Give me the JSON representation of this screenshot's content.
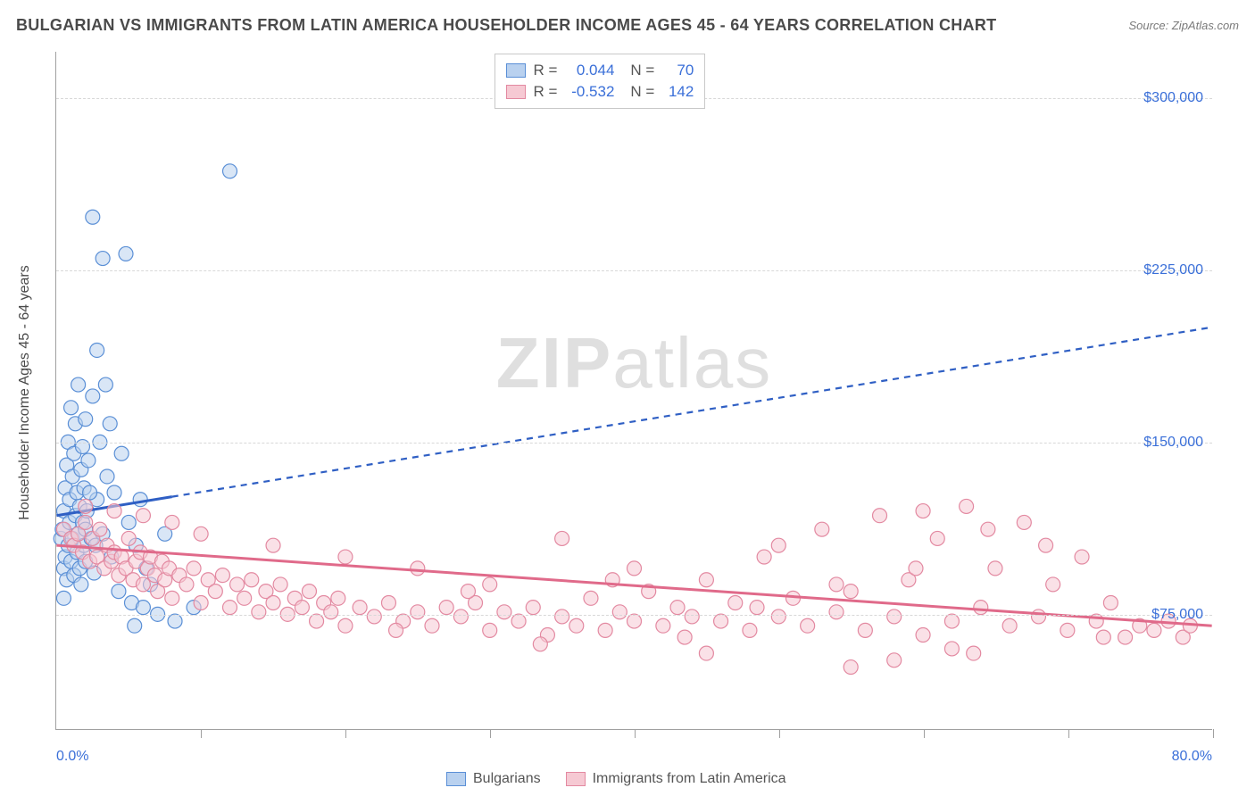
{
  "title": "BULGARIAN VS IMMIGRANTS FROM LATIN AMERICA HOUSEHOLDER INCOME AGES 45 - 64 YEARS CORRELATION CHART",
  "source": "Source: ZipAtlas.com",
  "ylabel": "Householder Income Ages 45 - 64 years",
  "watermark": {
    "bold": "ZIP",
    "light": "atlas"
  },
  "chart": {
    "type": "scatter-with-regression",
    "background_color": "#ffffff",
    "grid_color": "#d8d8d8",
    "axis_color": "#a0a0a0",
    "xlim": [
      0,
      80
    ],
    "ylim": [
      25000,
      320000
    ],
    "xtick_step": 10,
    "yticks": [
      75000,
      150000,
      225000,
      300000
    ],
    "ytick_labels": [
      "$75,000",
      "$150,000",
      "$225,000",
      "$300,000"
    ],
    "xlabel_min": "0.0%",
    "xlabel_max": "80.0%",
    "tick_label_color": "#3a6fd8",
    "marker_radius": 8,
    "marker_stroke_width": 1.2,
    "line_width": 3,
    "dash_pattern": "7 6"
  },
  "series": [
    {
      "name": "Bulgarians",
      "fill": "#b9d1ef",
      "stroke": "#5a8fd6",
      "line_color": "#2f5fc4",
      "R": "0.044",
      "N": "70",
      "regression": {
        "x1": 0,
        "y1": 118000,
        "x2": 80,
        "y2": 200000,
        "solid_until_x": 8
      },
      "points": [
        [
          0.3,
          108000
        ],
        [
          0.4,
          112000
        ],
        [
          0.5,
          95000
        ],
        [
          0.5,
          120000
        ],
        [
          0.6,
          130000
        ],
        [
          0.6,
          100000
        ],
        [
          0.7,
          140000
        ],
        [
          0.7,
          90000
        ],
        [
          0.8,
          150000
        ],
        [
          0.8,
          105000
        ],
        [
          0.9,
          115000
        ],
        [
          0.9,
          125000
        ],
        [
          1.0,
          165000
        ],
        [
          1.0,
          98000
        ],
        [
          1.1,
          135000
        ],
        [
          1.1,
          108000
        ],
        [
          1.2,
          145000
        ],
        [
          1.2,
          92000
        ],
        [
          1.3,
          118000
        ],
        [
          1.3,
          158000
        ],
        [
          1.4,
          102000
        ],
        [
          1.4,
          128000
        ],
        [
          1.5,
          110000
        ],
        [
          1.5,
          175000
        ],
        [
          1.6,
          95000
        ],
        [
          1.6,
          122000
        ],
        [
          1.7,
          138000
        ],
        [
          1.7,
          88000
        ],
        [
          1.8,
          115000
        ],
        [
          1.8,
          148000
        ],
        [
          1.9,
          105000
        ],
        [
          1.9,
          130000
        ],
        [
          2.0,
          160000
        ],
        [
          2.0,
          98000
        ],
        [
          2.1,
          120000
        ],
        [
          2.2,
          142000
        ],
        [
          2.4,
          108000
        ],
        [
          2.5,
          170000
        ],
        [
          2.6,
          93000
        ],
        [
          2.8,
          125000
        ],
        [
          3.0,
          150000
        ],
        [
          3.2,
          110000
        ],
        [
          3.5,
          135000
        ],
        [
          3.8,
          100000
        ],
        [
          4.0,
          128000
        ],
        [
          4.3,
          85000
        ],
        [
          4.5,
          145000
        ],
        [
          4.8,
          232000
        ],
        [
          5.0,
          115000
        ],
        [
          5.2,
          80000
        ],
        [
          5.4,
          70000
        ],
        [
          5.5,
          105000
        ],
        [
          5.8,
          125000
        ],
        [
          6.0,
          78000
        ],
        [
          6.2,
          95000
        ],
        [
          6.5,
          88000
        ],
        [
          7.0,
          75000
        ],
        [
          7.5,
          110000
        ],
        [
          8.2,
          72000
        ],
        [
          9.5,
          78000
        ],
        [
          2.5,
          248000
        ],
        [
          2.8,
          190000
        ],
        [
          3.2,
          230000
        ],
        [
          3.4,
          175000
        ],
        [
          3.7,
          158000
        ],
        [
          2.0,
          112000
        ],
        [
          2.3,
          128000
        ],
        [
          2.7,
          105000
        ],
        [
          12.0,
          268000
        ],
        [
          0.5,
          82000
        ]
      ]
    },
    {
      "name": "Immigrants from Latin America",
      "fill": "#f6c9d3",
      "stroke": "#e389a1",
      "line_color": "#e06a8a",
      "R": "-0.532",
      "N": "142",
      "regression": {
        "x1": 0,
        "y1": 105000,
        "x2": 80,
        "y2": 70000,
        "solid_until_x": 80
      },
      "points": [
        [
          0.5,
          112000
        ],
        [
          1.0,
          108000
        ],
        [
          1.2,
          105000
        ],
        [
          1.5,
          110000
        ],
        [
          1.8,
          102000
        ],
        [
          2.0,
          115000
        ],
        [
          2.3,
          98000
        ],
        [
          2.5,
          108000
        ],
        [
          2.8,
          100000
        ],
        [
          3.0,
          112000
        ],
        [
          3.3,
          95000
        ],
        [
          3.5,
          105000
        ],
        [
          3.8,
          98000
        ],
        [
          4.0,
          102000
        ],
        [
          4.3,
          92000
        ],
        [
          4.5,
          100000
        ],
        [
          4.8,
          95000
        ],
        [
          5.0,
          108000
        ],
        [
          5.3,
          90000
        ],
        [
          5.5,
          98000
        ],
        [
          5.8,
          102000
        ],
        [
          6.0,
          88000
        ],
        [
          6.3,
          95000
        ],
        [
          6.5,
          100000
        ],
        [
          6.8,
          92000
        ],
        [
          7.0,
          85000
        ],
        [
          7.3,
          98000
        ],
        [
          7.5,
          90000
        ],
        [
          7.8,
          95000
        ],
        [
          8.0,
          82000
        ],
        [
          8.5,
          92000
        ],
        [
          9.0,
          88000
        ],
        [
          9.5,
          95000
        ],
        [
          10.0,
          80000
        ],
        [
          10.5,
          90000
        ],
        [
          11.0,
          85000
        ],
        [
          11.5,
          92000
        ],
        [
          12.0,
          78000
        ],
        [
          12.5,
          88000
        ],
        [
          13.0,
          82000
        ],
        [
          13.5,
          90000
        ],
        [
          14.0,
          76000
        ],
        [
          14.5,
          85000
        ],
        [
          15.0,
          80000
        ],
        [
          15.5,
          88000
        ],
        [
          16.0,
          75000
        ],
        [
          16.5,
          82000
        ],
        [
          17.0,
          78000
        ],
        [
          17.5,
          85000
        ],
        [
          18.0,
          72000
        ],
        [
          18.5,
          80000
        ],
        [
          19.0,
          76000
        ],
        [
          19.5,
          82000
        ],
        [
          20.0,
          70000
        ],
        [
          21.0,
          78000
        ],
        [
          22.0,
          74000
        ],
        [
          23.0,
          80000
        ],
        [
          24.0,
          72000
        ],
        [
          25.0,
          76000
        ],
        [
          26.0,
          70000
        ],
        [
          27.0,
          78000
        ],
        [
          28.0,
          74000
        ],
        [
          29.0,
          80000
        ],
        [
          30.0,
          68000
        ],
        [
          31.0,
          76000
        ],
        [
          32.0,
          72000
        ],
        [
          33.0,
          78000
        ],
        [
          34.0,
          66000
        ],
        [
          35.0,
          74000
        ],
        [
          36.0,
          70000
        ],
        [
          37.0,
          82000
        ],
        [
          38.0,
          68000
        ],
        [
          39.0,
          76000
        ],
        [
          40.0,
          72000
        ],
        [
          41.0,
          85000
        ],
        [
          42.0,
          70000
        ],
        [
          43.0,
          78000
        ],
        [
          44.0,
          74000
        ],
        [
          45.0,
          90000
        ],
        [
          46.0,
          72000
        ],
        [
          47.0,
          80000
        ],
        [
          48.0,
          68000
        ],
        [
          49.0,
          100000
        ],
        [
          50.0,
          74000
        ],
        [
          51.0,
          82000
        ],
        [
          52.0,
          70000
        ],
        [
          53.0,
          112000
        ],
        [
          54.0,
          76000
        ],
        [
          55.0,
          85000
        ],
        [
          56.0,
          68000
        ],
        [
          57.0,
          118000
        ],
        [
          58.0,
          74000
        ],
        [
          59.0,
          90000
        ],
        [
          60.0,
          66000
        ],
        [
          61.0,
          108000
        ],
        [
          62.0,
          72000
        ],
        [
          63.0,
          122000
        ],
        [
          64.0,
          78000
        ],
        [
          65.0,
          95000
        ],
        [
          66.0,
          70000
        ],
        [
          67.0,
          115000
        ],
        [
          68.0,
          74000
        ],
        [
          69.0,
          88000
        ],
        [
          70.0,
          68000
        ],
        [
          71.0,
          100000
        ],
        [
          72.0,
          72000
        ],
        [
          73.0,
          80000
        ],
        [
          74.0,
          65000
        ],
        [
          75.0,
          70000
        ],
        [
          76.0,
          68000
        ],
        [
          77.0,
          72000
        ],
        [
          78.0,
          65000
        ],
        [
          78.5,
          70000
        ],
        [
          58.0,
          55000
        ],
        [
          60.0,
          120000
        ],
        [
          62.0,
          60000
        ],
        [
          55.0,
          52000
        ],
        [
          50.0,
          105000
        ],
        [
          45.0,
          58000
        ],
        [
          40.0,
          95000
        ],
        [
          35.0,
          108000
        ],
        [
          30.0,
          88000
        ],
        [
          25.0,
          95000
        ],
        [
          20.0,
          100000
        ],
        [
          15.0,
          105000
        ],
        [
          10.0,
          110000
        ],
        [
          8.0,
          115000
        ],
        [
          6.0,
          118000
        ],
        [
          4.0,
          120000
        ],
        [
          2.0,
          122000
        ],
        [
          63.5,
          58000
        ],
        [
          68.5,
          105000
        ],
        [
          72.5,
          65000
        ],
        [
          64.5,
          112000
        ],
        [
          59.5,
          95000
        ],
        [
          54.0,
          88000
        ],
        [
          48.5,
          78000
        ],
        [
          43.5,
          65000
        ],
        [
          38.5,
          90000
        ],
        [
          33.5,
          62000
        ],
        [
          28.5,
          85000
        ],
        [
          23.5,
          68000
        ]
      ]
    }
  ],
  "bottom_legend": [
    {
      "label": "Bulgarians",
      "swatch_fill": "#b9d1ef",
      "swatch_stroke": "#5a8fd6"
    },
    {
      "label": "Immigrants from Latin America",
      "swatch_fill": "#f6c9d3",
      "swatch_stroke": "#e389a1"
    }
  ]
}
